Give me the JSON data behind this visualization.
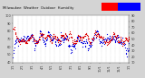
{
  "title": "Milwaukee Weather Outdoor Humidity",
  "bg_color": "#d4d4d4",
  "plot_bg_color": "#ffffff",
  "humidity_color": "#0000dd",
  "temp_color": "#dd0000",
  "legend_bar_red": "#ff0000",
  "legend_bar_blue": "#0000ff",
  "grid_color": "#bbbbbb",
  "tick_fontsize": 2.5,
  "dot_size": 0.8,
  "ylim_hum": [
    40,
    100
  ],
  "ylim_temp": [
    10,
    90
  ],
  "n_points": 300,
  "seed": 7
}
